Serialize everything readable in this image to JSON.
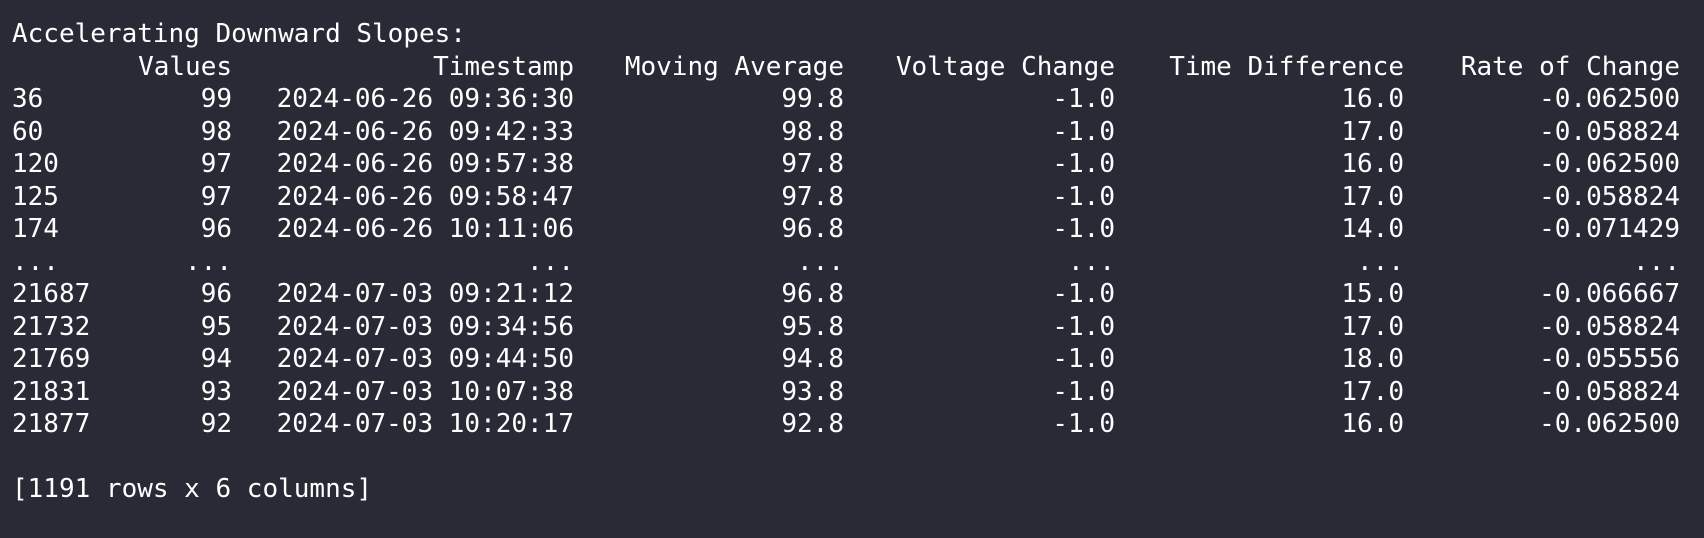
{
  "heading": "Accelerating Downward Slopes:",
  "columns": [
    "Values",
    "Timestamp",
    "Moving Average",
    "Voltage Change",
    "Time Difference",
    "Rate of Change"
  ],
  "rows": [
    [
      "36",
      "99",
      "2024-06-26 09:36:30",
      "99.8",
      "-1.0",
      "16.0",
      "-0.062500"
    ],
    [
      "60",
      "98",
      "2024-06-26 09:42:33",
      "98.8",
      "-1.0",
      "17.0",
      "-0.058824"
    ],
    [
      "120",
      "97",
      "2024-06-26 09:57:38",
      "97.8",
      "-1.0",
      "16.0",
      "-0.062500"
    ],
    [
      "125",
      "97",
      "2024-06-26 09:58:47",
      "97.8",
      "-1.0",
      "17.0",
      "-0.058824"
    ],
    [
      "174",
      "96",
      "2024-06-26 10:11:06",
      "96.8",
      "-1.0",
      "14.0",
      "-0.071429"
    ],
    [
      "...",
      "...",
      "...",
      "...",
      "...",
      "...",
      "..."
    ],
    [
      "21687",
      "96",
      "2024-07-03 09:21:12",
      "96.8",
      "-1.0",
      "15.0",
      "-0.066667"
    ],
    [
      "21732",
      "95",
      "2024-07-03 09:34:56",
      "95.8",
      "-1.0",
      "17.0",
      "-0.058824"
    ],
    [
      "21769",
      "94",
      "2024-07-03 09:44:50",
      "94.8",
      "-1.0",
      "18.0",
      "-0.055556"
    ],
    [
      "21831",
      "93",
      "2024-07-03 10:07:38",
      "93.8",
      "-1.0",
      "17.0",
      "-0.058824"
    ],
    [
      "21877",
      "92",
      "2024-07-03 10:20:17",
      "92.8",
      "-1.0",
      "16.0",
      "-0.062500"
    ]
  ],
  "summary": "[1191 rows x 6 columns]"
}
